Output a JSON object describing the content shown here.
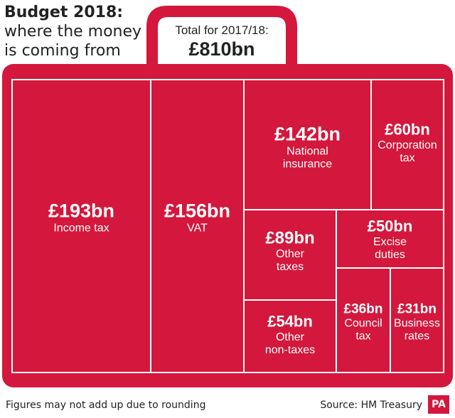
{
  "title": {
    "line1": "Budget 2018:",
    "line2": "where the money",
    "line3": "is coming from"
  },
  "total": {
    "label": "Total for 2017/18:",
    "value": "£810bn"
  },
  "chart_data": {
    "type": "treemap",
    "unit": "£bn",
    "total": 810,
    "categories": [
      "Income tax",
      "VAT",
      "National insurance",
      "Corporation tax",
      "Other taxes",
      "Excise duties",
      "Other non-taxes",
      "Council tax",
      "Business rates"
    ],
    "values": [
      193,
      156,
      142,
      60,
      89,
      50,
      54,
      36,
      31
    ],
    "items": [
      {
        "value_label": "£193bn",
        "label": [
          "Income tax"
        ]
      },
      {
        "value_label": "£156bn",
        "label": [
          "VAT"
        ]
      },
      {
        "value_label": "£142bn",
        "label": [
          "National",
          "insurance"
        ]
      },
      {
        "value_label": "£60bn",
        "label": [
          "Corporation",
          "tax"
        ]
      },
      {
        "value_label": "£89bn",
        "label": [
          "Other",
          "taxes"
        ]
      },
      {
        "value_label": "£50bn",
        "label": [
          "Excise",
          "duties"
        ]
      },
      {
        "value_label": "£54bn",
        "label": [
          "Other",
          "non-taxes"
        ]
      },
      {
        "value_label": "£36bn",
        "label": [
          "Council",
          "tax"
        ]
      },
      {
        "value_label": "£31bn",
        "label": [
          "Business",
          "rates"
        ]
      }
    ]
  },
  "footer": {
    "note": "Figures may not add up due to rounding",
    "source": "Source: HM Treasury",
    "logo": "PA"
  },
  "colors": {
    "case": "#d4173c",
    "divider": "#ffffff",
    "text": "#ffffff",
    "title": "#222222"
  }
}
